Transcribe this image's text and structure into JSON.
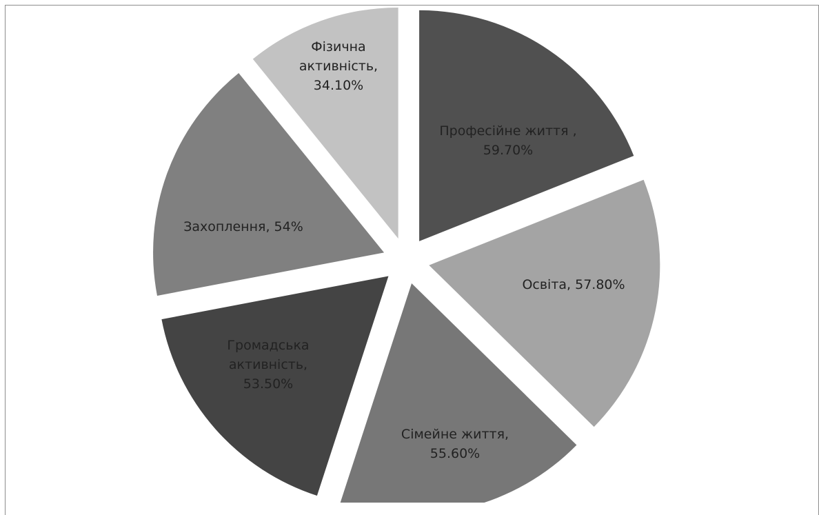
{
  "chart_data": {
    "type": "pie",
    "exploded": true,
    "slices": [
      {
        "label": "Професійне життя ,",
        "value": 59.7,
        "value_label": "59.70%",
        "color": "#505050"
      },
      {
        "label": "Освіта,",
        "value": 57.8,
        "value_label": "57.80%",
        "color": "#a4a4a4"
      },
      {
        "label": "Сімейне життя,",
        "value": 55.6,
        "value_label": "55.60%",
        "color": "#777777"
      },
      {
        "label": "Громадська активність,",
        "value": 53.5,
        "value_label": "53.50%",
        "color": "#444444"
      },
      {
        "label": "Захоплення,",
        "value": 54,
        "value_label": "54%",
        "color": "#808080"
      },
      {
        "label": "Фізична активність,",
        "value": 34.1,
        "value_label": "34.10%",
        "color": "#c2c2c2"
      }
    ]
  }
}
